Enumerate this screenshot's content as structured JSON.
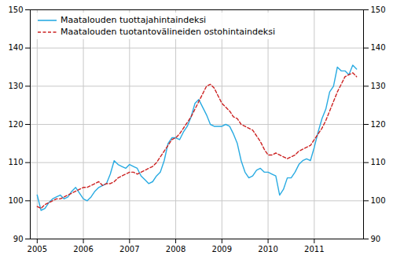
{
  "chart_data": {
    "type": "line",
    "x": [
      2005,
      2005.0833333333,
      2005.1666666667,
      2005.25,
      2005.3333333333,
      2005.4166666667,
      2005.5,
      2005.5833333333,
      2005.6666666667,
      2005.75,
      2005.8333333333,
      2005.9166666667,
      2006,
      2006.0833333333,
      2006.1666666667,
      2006.25,
      2006.3333333333,
      2006.4166666667,
      2006.5,
      2006.5833333333,
      2006.6666666667,
      2006.75,
      2006.8333333333,
      2006.9166666667,
      2007,
      2007.0833333333,
      2007.1666666667,
      2007.25,
      2007.3333333333,
      2007.4166666667,
      2007.5,
      2007.5833333333,
      2007.6666666667,
      2007.75,
      2007.8333333333,
      2007.9166666667,
      2008,
      2008.0833333333,
      2008.1666666667,
      2008.25,
      2008.3333333333,
      2008.4166666667,
      2008.5,
      2008.5833333333,
      2008.6666666667,
      2008.75,
      2008.8333333333,
      2008.9166666667,
      2009,
      2009.0833333333,
      2009.1666666667,
      2009.25,
      2009.3333333333,
      2009.4166666667,
      2009.5,
      2009.5833333333,
      2009.6666666667,
      2009.75,
      2009.8333333333,
      2009.9166666667,
      2010,
      2010.0833333333,
      2010.1666666667,
      2010.25,
      2010.3333333333,
      2010.4166666667,
      2010.5,
      2010.5833333333,
      2010.6666666667,
      2010.75,
      2010.8333333333,
      2010.9166666667,
      2011,
      2011.0833333333,
      2011.1666666667,
      2011.25,
      2011.3333333333,
      2011.4166666667,
      2011.5,
      2011.5833333333,
      2011.6666666667,
      2011.75,
      2011.8333333333,
      2011.9166666667
    ],
    "series": [
      {
        "name": "Maatalouden tuottajahintaindeksi",
        "color": "#29abe2",
        "line_style": "solid",
        "axis": "y",
        "values": [
          101.5,
          97.5,
          98.0,
          99.5,
          100.5,
          101.0,
          101.5,
          100.5,
          101.0,
          102.5,
          103.5,
          102.0,
          100.5,
          100.0,
          101.0,
          102.5,
          103.5,
          104.0,
          104.5,
          107.0,
          110.5,
          109.5,
          109.0,
          108.5,
          109.5,
          109.0,
          108.5,
          106.5,
          105.5,
          104.5,
          105.0,
          106.5,
          107.5,
          110.5,
          115.0,
          116.5,
          116.5,
          116.0,
          118.0,
          119.5,
          122.0,
          125.5,
          126.5,
          124.5,
          122.5,
          120.0,
          119.5,
          119.5,
          119.5,
          120.0,
          119.5,
          117.5,
          115.0,
          110.5,
          107.5,
          106.0,
          106.5,
          108.0,
          108.5,
          107.5,
          107.5,
          107.0,
          106.5,
          101.5,
          103.0,
          106.0,
          106.0,
          107.5,
          109.5,
          110.5,
          111.0,
          110.5,
          114.0,
          118.0,
          121.5,
          124.0,
          128.5,
          130.0,
          135.0,
          134.0,
          134.0,
          133.0,
          135.5,
          134.5
        ]
      },
      {
        "name": "Maatalouden tuotantovälineiden ostohintaindeksi",
        "color": "#cc2222",
        "line_style": "dashed",
        "axis": "y2",
        "values": [
          98.5,
          98.0,
          99.0,
          99.5,
          100.0,
          100.5,
          100.5,
          101.0,
          101.5,
          102.0,
          102.5,
          103.0,
          103.5,
          103.5,
          104.0,
          104.5,
          105.0,
          104.0,
          104.5,
          104.5,
          105.0,
          106.0,
          106.5,
          107.0,
          107.5,
          107.5,
          107.0,
          107.5,
          108.0,
          108.5,
          109.0,
          110.0,
          111.5,
          113.0,
          114.5,
          116.0,
          116.5,
          117.5,
          119.0,
          120.5,
          122.0,
          124.0,
          126.0,
          128.0,
          130.0,
          130.5,
          129.5,
          127.5,
          125.5,
          124.5,
          123.5,
          122.0,
          121.5,
          120.0,
          119.5,
          119.0,
          118.5,
          117.0,
          115.5,
          113.5,
          112.0,
          112.0,
          112.5,
          112.0,
          111.5,
          111.0,
          111.5,
          112.0,
          113.0,
          113.5,
          114.0,
          114.5,
          116.0,
          117.5,
          119.0,
          121.0,
          123.5,
          126.0,
          128.5,
          130.5,
          132.5,
          133.0,
          133.5,
          132.5
        ]
      }
    ],
    "xlim": [
      2004.85,
      2012.0666666667
    ],
    "xticks": [
      2005,
      2006,
      2007,
      2008,
      2009,
      2010,
      2011
    ],
    "ylim": [
      90,
      150
    ],
    "yticks": [
      90,
      100,
      110,
      120,
      130,
      140,
      150
    ],
    "y2lim": [
      90,
      150
    ],
    "y2ticks": [
      90,
      100,
      110,
      120,
      130,
      140,
      150
    ],
    "grid": true,
    "legend": "upper left"
  }
}
